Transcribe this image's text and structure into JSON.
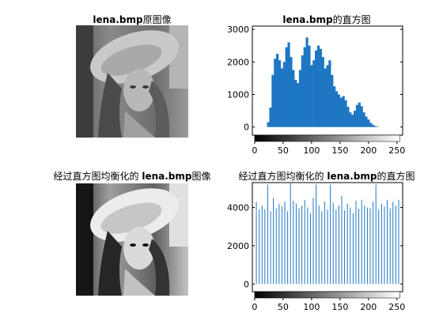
{
  "titles": {
    "top_left": {
      "bold": "lena.bmp",
      "rest": "原图像",
      "prefix": ""
    },
    "top_right": {
      "bold": "lena.bmp",
      "rest": "的直方图",
      "prefix": ""
    },
    "bottom_left": {
      "prefix": "经过直方图均衡化的 ",
      "bold": "lena.bmp",
      "rest": "图像"
    },
    "bottom_right": {
      "prefix": "经过直方图均衡化的 ",
      "bold": "lena.bmp",
      "rest": "的直方图"
    }
  },
  "images": [
    {
      "name": "original-image",
      "contrast": "normal"
    },
    {
      "name": "equalized-image",
      "contrast": "high"
    }
  ],
  "chart_data": [
    {
      "type": "bar",
      "title": "lena.bmp的直方图",
      "xlabel": "",
      "ylabel": "",
      "xlim": [
        -4,
        260
      ],
      "ylim": [
        -250,
        3100
      ],
      "xticks": [
        0,
        50,
        100,
        150,
        200,
        250
      ],
      "yticks": [
        0,
        1000,
        2000,
        3000
      ],
      "bar_color": "#1f77c4",
      "colorbar": "grayscale 0-255",
      "x": [
        24,
        28,
        32,
        36,
        40,
        44,
        48,
        52,
        56,
        60,
        64,
        68,
        72,
        76,
        80,
        84,
        88,
        92,
        96,
        100,
        104,
        108,
        112,
        116,
        120,
        124,
        128,
        132,
        136,
        140,
        144,
        148,
        152,
        156,
        160,
        164,
        168,
        172,
        176,
        180,
        184,
        188,
        192,
        196,
        200,
        204,
        208,
        212,
        216,
        220,
        224,
        228
      ],
      "values": [
        150,
        600,
        1600,
        2100,
        2250,
        2050,
        1800,
        2000,
        2450,
        2600,
        2150,
        1750,
        1450,
        1350,
        1750,
        2200,
        2450,
        2750,
        2500,
        1900,
        2050,
        2350,
        2500,
        2400,
        2150,
        1800,
        1900,
        2050,
        1600,
        1250,
        1100,
        1000,
        900,
        950,
        820,
        620,
        450,
        380,
        500,
        680,
        750,
        640,
        450,
        320,
        230,
        130,
        70,
        30,
        10,
        0,
        0,
        0
      ]
    },
    {
      "type": "bar",
      "title": "经过直方图均衡化的 lena.bmp的直方图",
      "xlabel": "",
      "ylabel": "",
      "xlim": [
        -4,
        260
      ],
      "ylim": [
        -400,
        5300
      ],
      "xticks": [
        0,
        50,
        100,
        150,
        200,
        250
      ],
      "yticks": [
        0,
        2000,
        4000
      ],
      "bar_color": "#1f77c4",
      "colorbar": "grayscale 0-255",
      "x": [
        3,
        8,
        13,
        18,
        23,
        28,
        33,
        38,
        43,
        48,
        53,
        58,
        63,
        68,
        73,
        78,
        83,
        88,
        93,
        98,
        103,
        108,
        113,
        118,
        123,
        128,
        133,
        138,
        143,
        148,
        153,
        158,
        163,
        168,
        173,
        178,
        183,
        188,
        193,
        198,
        203,
        208,
        213,
        218,
        223,
        228,
        233,
        238,
        243,
        248,
        253
      ],
      "values": [
        4300,
        3900,
        4100,
        3900,
        5200,
        3800,
        4500,
        3950,
        4200,
        4050,
        4300,
        3800,
        5250,
        4350,
        4200,
        3950,
        4100,
        4400,
        4000,
        3700,
        4500,
        5200,
        4100,
        3800,
        4300,
        3900,
        5200,
        4250,
        3900,
        4100,
        4600,
        3850,
        4200,
        4000,
        3700,
        4350,
        3950,
        4400,
        4100,
        4000,
        3950,
        4300,
        5200,
        3900,
        4200,
        4050,
        4400,
        3950,
        4300,
        4100,
        4400
      ]
    }
  ]
}
